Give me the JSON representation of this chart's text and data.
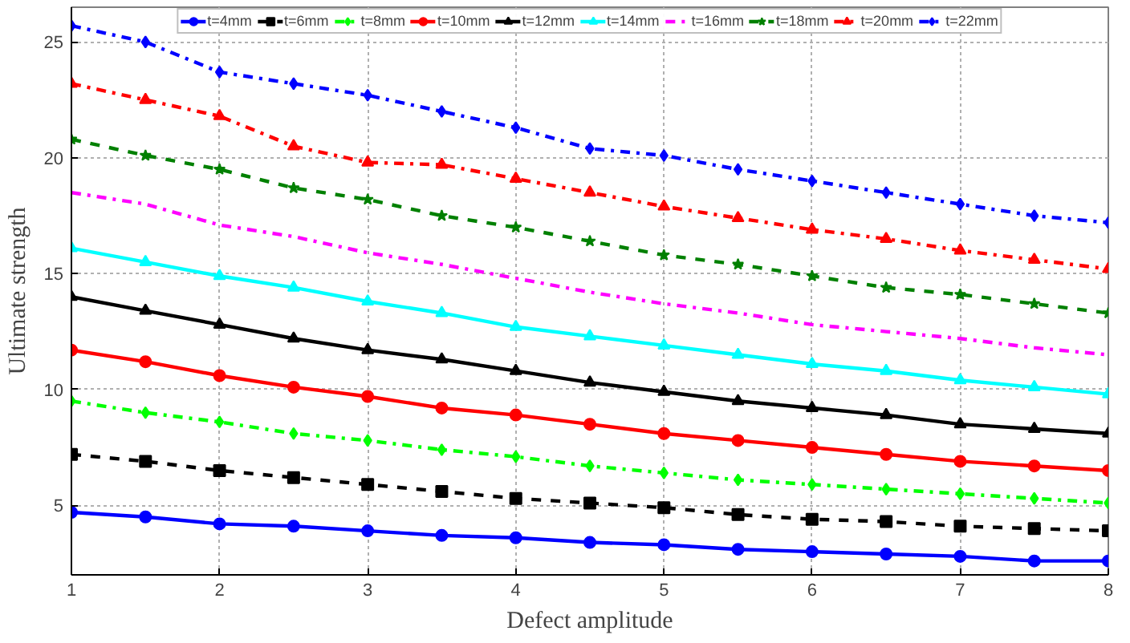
{
  "chart_data": {
    "type": "line",
    "xlabel": "Defect amplitude",
    "ylabel": "Ultimate strength",
    "x": [
      1,
      1.5,
      2,
      2.5,
      3,
      3.5,
      4,
      4.5,
      5,
      5.5,
      6,
      6.5,
      7,
      7.5,
      8
    ],
    "xlim": [
      1,
      8
    ],
    "xticks": [
      1,
      2,
      3,
      4,
      5,
      6,
      7,
      8
    ],
    "ylim": [
      2,
      26.5
    ],
    "yticks": [
      5,
      10,
      15,
      20,
      25
    ],
    "grid": true,
    "legend": "top",
    "series": [
      {
        "name": "t=4mm",
        "color": "#0000ff",
        "marker": "circle",
        "line_style": "solid",
        "values": [
          4.7,
          4.5,
          4.2,
          4.1,
          3.9,
          3.7,
          3.6,
          3.4,
          3.3,
          3.1,
          3.0,
          2.9,
          2.8,
          2.6,
          2.6
        ]
      },
      {
        "name": "t=6mm",
        "color": "#000000",
        "marker": "square",
        "line_style": "dashed",
        "values": [
          7.2,
          6.9,
          6.5,
          6.2,
          5.9,
          5.6,
          5.3,
          5.1,
          4.9,
          4.6,
          4.4,
          4.3,
          4.1,
          4.0,
          3.9
        ]
      },
      {
        "name": "t=8mm",
        "color": "#00ff00",
        "marker": "diamond",
        "line_style": "dashdot",
        "values": [
          9.5,
          9.0,
          8.6,
          8.1,
          7.8,
          7.4,
          7.1,
          6.7,
          6.4,
          6.1,
          5.9,
          5.7,
          5.5,
          5.3,
          5.1
        ]
      },
      {
        "name": "t=10mm",
        "color": "#ff0000",
        "marker": "circle",
        "line_style": "solid",
        "values": [
          11.7,
          11.2,
          10.6,
          10.1,
          9.7,
          9.2,
          8.9,
          8.5,
          8.1,
          7.8,
          7.5,
          7.2,
          6.9,
          6.7,
          6.5
        ]
      },
      {
        "name": "t=12mm",
        "color": "#000000",
        "marker": "triangle",
        "line_style": "solid",
        "values": [
          14.0,
          13.4,
          12.8,
          12.2,
          11.7,
          11.3,
          10.8,
          10.3,
          9.9,
          9.5,
          9.2,
          8.9,
          8.5,
          8.3,
          8.1
        ]
      },
      {
        "name": "t=14mm",
        "color": "#00ffff",
        "marker": "triangle",
        "line_style": "solid",
        "values": [
          16.1,
          15.5,
          14.9,
          14.4,
          13.8,
          13.3,
          12.7,
          12.3,
          11.9,
          11.5,
          11.1,
          10.8,
          10.4,
          10.1,
          9.8
        ]
      },
      {
        "name": "t=16mm",
        "color": "#ff00ff",
        "marker": "none",
        "line_style": "dashdot",
        "values": [
          18.5,
          18.0,
          17.1,
          16.6,
          15.9,
          15.4,
          14.8,
          14.2,
          13.7,
          13.3,
          12.8,
          12.5,
          12.2,
          11.8,
          11.5
        ]
      },
      {
        "name": "t=18mm",
        "color": "#008000",
        "marker": "star",
        "line_style": "dashed",
        "values": [
          20.8,
          20.1,
          19.5,
          18.7,
          18.2,
          17.5,
          17.0,
          16.4,
          15.8,
          15.4,
          14.9,
          14.4,
          14.1,
          13.7,
          13.3
        ]
      },
      {
        "name": "t=20mm",
        "color": "#ff0000",
        "marker": "triangle",
        "line_style": "dashdot",
        "values": [
          23.2,
          22.5,
          21.8,
          20.5,
          19.8,
          19.7,
          19.1,
          18.5,
          17.9,
          17.4,
          16.9,
          16.5,
          16.0,
          15.6,
          15.2
        ]
      },
      {
        "name": "t=22mm",
        "color": "#0000ff",
        "marker": "diamond",
        "line_style": "dashdot",
        "values": [
          25.7,
          25.0,
          23.7,
          23.2,
          22.7,
          22.0,
          21.3,
          20.4,
          20.1,
          19.5,
          19.0,
          18.5,
          18.0,
          17.5,
          17.2
        ]
      }
    ]
  }
}
